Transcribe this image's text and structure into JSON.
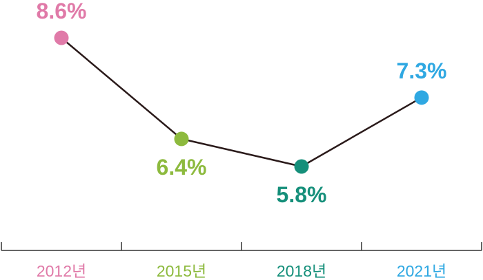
{
  "chart_data": {
    "type": "line",
    "categories": [
      "2012년",
      "2015년",
      "2018년",
      "2021년"
    ],
    "values": [
      8.6,
      6.4,
      5.8,
      7.3
    ],
    "data_labels": [
      "8.6%",
      "6.4%",
      "5.8%",
      "7.3%"
    ],
    "point_colors": [
      "#e07aa8",
      "#8dba3e",
      "#158f7a",
      "#2fa8e2"
    ],
    "line_color": "#2a1a1a",
    "axis_color": "#333333",
    "ylim": [
      5.0,
      9.0
    ],
    "grid": false,
    "legend": "none",
    "title": "",
    "xlabel": "",
    "ylabel": ""
  }
}
